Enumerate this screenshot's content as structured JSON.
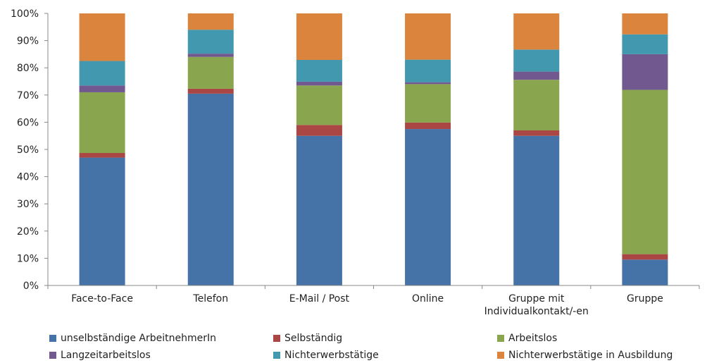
{
  "chart_data": {
    "type": "bar",
    "stacked": true,
    "categories": [
      [
        "Face-to-Face"
      ],
      [
        "Telefon"
      ],
      [
        "E-Mail / Post"
      ],
      [
        "Online"
      ],
      [
        "Gruppe mit",
        "Individualkontakt/-en"
      ],
      [
        "Gruppe"
      ]
    ],
    "ylim": [
      0,
      100
    ],
    "yticks": [
      "0%",
      "10%",
      "20%",
      "30%",
      "40%",
      "50%",
      "60%",
      "70%",
      "80%",
      "90%",
      "100%"
    ],
    "legend_position": "bottom",
    "grid": false,
    "series": [
      {
        "name": "unselbständige ArbeitnehmerIn",
        "color": "#4572A7",
        "values": [
          47,
          70.5,
          55,
          57.5,
          55,
          9.5
        ]
      },
      {
        "name": "Selbständig",
        "color": "#AA4643",
        "values": [
          1.7,
          1.8,
          4,
          2.4,
          2,
          2
        ]
      },
      {
        "name": "Arbeitslos",
        "color": "#89A54E",
        "values": [
          22.3,
          11.7,
          14.5,
          14.1,
          18.6,
          60.4
        ]
      },
      {
        "name": "Langzeitarbeitslos",
        "color": "#71588F",
        "values": [
          2.5,
          1.2,
          1.4,
          0.7,
          3,
          13.1
        ]
      },
      {
        "name": "Nichterwerbstätige",
        "color": "#4198AF",
        "values": [
          9,
          8.8,
          8,
          8.3,
          8.1,
          7.3
        ]
      },
      {
        "name": "Nichterwerbstätige in Ausbildung",
        "color": "#DB843D",
        "values": [
          17.5,
          6,
          17.1,
          17,
          13.3,
          7.7
        ]
      }
    ]
  }
}
